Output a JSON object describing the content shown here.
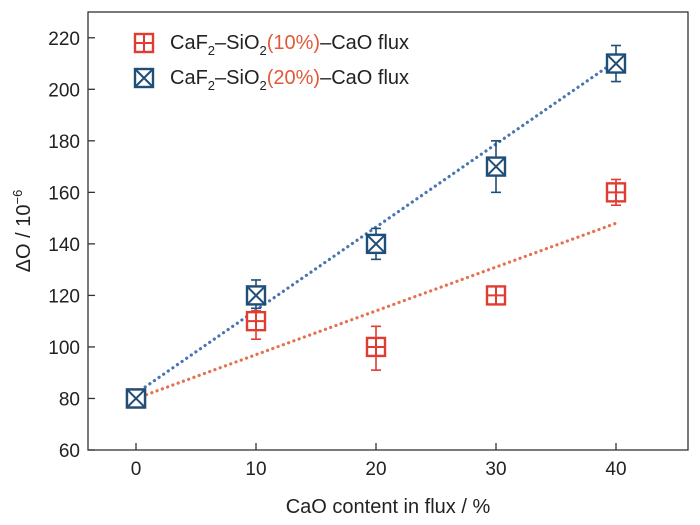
{
  "chart_data": {
    "type": "scatter",
    "xlabel": "CaO content in flux / %",
    "ylabel_main": "ΔO / 10",
    "ylabel_exp": "−6",
    "xlim": [
      -4,
      46
    ],
    "ylim": [
      60,
      230
    ],
    "x_ticks": [
      0,
      10,
      20,
      30,
      40
    ],
    "y_ticks": [
      60,
      80,
      100,
      120,
      140,
      160,
      180,
      200,
      220
    ],
    "x_tick_labels": [
      "0",
      "10",
      "20",
      "30",
      "40"
    ],
    "y_tick_labels": [
      "60",
      "80",
      "100",
      "120",
      "140",
      "160",
      "180",
      "200",
      "220"
    ],
    "grid": false,
    "legend_position": "top-left",
    "series": [
      {
        "name": "CaF2–SiO2(10%)–CaO flux",
        "legend": {
          "p1": "CaF",
          "s1": "2",
          "p2": "–SiO",
          "s2": "2",
          "highlight": "(10%)",
          "p3": "–CaO flux"
        },
        "marker": "square-plus",
        "color": "#e03c31",
        "highlight_color": "#e05a3a",
        "x": [
          0,
          10,
          20,
          30,
          40
        ],
        "y": [
          80,
          110,
          100,
          120,
          160
        ],
        "err_low": [
          3,
          7,
          9,
          3,
          5
        ],
        "err_high": [
          3,
          4,
          8,
          3,
          5
        ],
        "fit": {
          "x": [
            0,
            40
          ],
          "y": [
            80,
            148
          ],
          "color": "#e87050",
          "style": "dotted"
        }
      },
      {
        "name": "CaF2–SiO2(20%)–CaO flux",
        "legend": {
          "p1": "CaF",
          "s1": "2",
          "p2": "–SiO",
          "s2": "2",
          "highlight": "(20%)",
          "p3": "–CaO flux"
        },
        "marker": "square-x",
        "color": "#1f4e79",
        "highlight_color": "#e05a3a",
        "x": [
          0,
          10,
          20,
          30,
          40
        ],
        "y": [
          80,
          120,
          140,
          170,
          210
        ],
        "err_low": [
          3,
          5,
          6,
          10,
          7
        ],
        "err_high": [
          3,
          6,
          6,
          10,
          7
        ],
        "fit": {
          "x": [
            0,
            40
          ],
          "y": [
            82,
            211
          ],
          "color": "#4a76b0",
          "style": "dotted"
        }
      }
    ]
  }
}
